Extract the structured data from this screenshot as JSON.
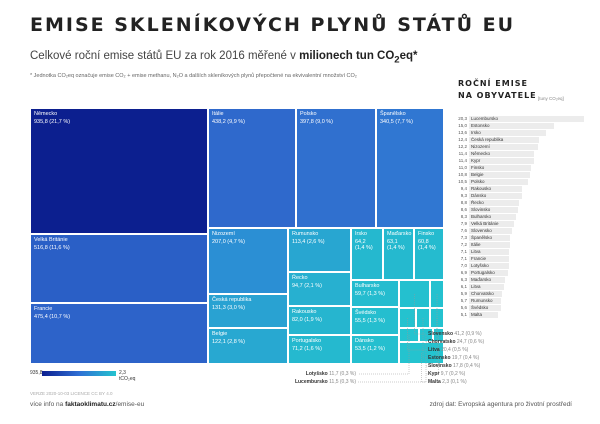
{
  "title": "EMISE SKLENÍKOVÝCH PLYNŮ STÁTŮ EU",
  "subtitle": {
    "prefix": "Celkové roční emise států EU za rok 2016 měřené v ",
    "bold": "milionech tun CO",
    "sub": "2",
    "bold_end": "eq*"
  },
  "footnote": "* Jednotka CO₂eq označuje emise CO₂ + emise methanu, N₂O a dalších skleníkových plynů přepočtené na ekvivalentní množství CO₂",
  "side_panel": {
    "title_line1": "ROČNÍ EMISE",
    "title_line2": "NA OBYVATELE",
    "unit": "[tuny CO₂eq]"
  },
  "legend": {
    "max": "935,8",
    "min": "2,3 tCO₂eq"
  },
  "footer": {
    "version": "VERZE 2020-10-03    LICENCE CC BY 4.0",
    "credit_prefix": "více info na ",
    "credit_bold": "faktaoklimatu.cz",
    "credit_suffix": "/emise-eu",
    "source": "zdroj dat: Evropská agentura pro životní prostředí"
  },
  "colors": {
    "darkest": "#0c1f8f",
    "mid": "#2f6fd4",
    "lightest": "#24c3cf",
    "percap_bar": "#ececec"
  },
  "chart_data": [
    {
      "type": "treemap",
      "title": "Celkové roční emise států EU za rok 2016 měřené v milionech tun CO2eq",
      "unit": "mil. t CO2eq",
      "items": [
        {
          "name": "Německo",
          "value": 935.8,
          "label": "935,8 (21,7 %)",
          "color": "#0c1f8f"
        },
        {
          "name": "Velká Británie",
          "value": 516.8,
          "label": "516,8 (11,6 %)",
          "color": "#2a5fc6"
        },
        {
          "name": "Francie",
          "value": 475.4,
          "label": "475,4 (10,7 %)",
          "color": "#2d63c9"
        },
        {
          "name": "Itálie",
          "value": 438.2,
          "label": "438,2 (9,9 %)",
          "color": "#2f69cc"
        },
        {
          "name": "Polsko",
          "value": 397.8,
          "label": "397,8 (9,0 %)",
          "color": "#3070cf"
        },
        {
          "name": "Španělsko",
          "value": 340.5,
          "label": "340,5 (7,7 %)",
          "color": "#3077d2"
        },
        {
          "name": "Nizozemí",
          "value": 207.0,
          "label": "207,0 (4,7 %)",
          "color": "#2b8fd4"
        },
        {
          "name": "Česká republika",
          "value": 131.3,
          "label": "131,3 (3,0 %)",
          "color": "#29a2d2"
        },
        {
          "name": "Belgie",
          "value": 122.1,
          "label": "122,1 (2,8 %)",
          "color": "#28a8d1"
        },
        {
          "name": "Rumunsko",
          "value": 113.4,
          "label": "113,4 (2,6 %)",
          "color": "#28a6d1"
        },
        {
          "name": "Řecko",
          "value": 94.7,
          "label": "94,7 (2,1 %)",
          "color": "#27b0d0"
        },
        {
          "name": "Rakousko",
          "value": 82.0,
          "label": "82,0 (1,9 %)",
          "color": "#26b5cf"
        },
        {
          "name": "Portugalsko",
          "value": 71.2,
          "label": "71,2 (1,6 %)",
          "color": "#25b9cf"
        },
        {
          "name": "Irsko",
          "value": 64.2,
          "label": "64,2 (1,4 %)",
          "color": "#25b8cf"
        },
        {
          "name": "Maďarsko",
          "value": 63.1,
          "label": "63,1 (1,4 %)",
          "color": "#25b9cf"
        },
        {
          "name": "Finsko",
          "value": 60.8,
          "label": "60,8 (1,4 %)",
          "color": "#25bbcf"
        },
        {
          "name": "Bulharsko",
          "value": 59.7,
          "label": "59,7 (1,3 %)",
          "color": "#25bccf"
        },
        {
          "name": "Švédsko",
          "value": 55.5,
          "label": "55,5 (1,3 %)",
          "color": "#25becf"
        },
        {
          "name": "Dánsko",
          "value": 53.5,
          "label": "53,5 (1,2 %)",
          "color": "#25bfcf"
        },
        {
          "name": "Slovensko",
          "value": 41.2,
          "label": "41,2 (0,9 %)",
          "color": "#24c0cf"
        },
        {
          "name": "Chorvatsko",
          "value": 24.7,
          "label": "24,7 (0,6 %)",
          "color": "#24c1cf"
        },
        {
          "name": "Litva",
          "value": 20.4,
          "label": "20,4 (0,5 %)",
          "color": "#24c2cf"
        },
        {
          "name": "Estonsko",
          "value": 19.7,
          "label": "19,7 (0,4 %)",
          "color": "#24c2cf"
        },
        {
          "name": "Slovinsko",
          "value": 17.8,
          "label": "17,8 (0,4 %)",
          "color": "#24c2cf"
        },
        {
          "name": "Lotyšsko",
          "value": 11.7,
          "label": "11,7 (0,3 %)",
          "color": "#24c3cf"
        },
        {
          "name": "Lucembursko",
          "value": 11.5,
          "label": "11,5 (0,3 %)",
          "color": "#24c3cf"
        },
        {
          "name": "Kypr",
          "value": 9.7,
          "label": "9,7 (0,2 %)",
          "color": "#24c3cf"
        },
        {
          "name": "Malta",
          "value": 2.3,
          "label": "2,3 (0,1 %)",
          "color": "#24c3cf"
        }
      ]
    },
    {
      "type": "bar",
      "title": "ROČNÍ EMISE NA OBYVATELE",
      "unit": "tuny CO2eq",
      "orientation": "horizontal",
      "categories": [
        "Lucembursko",
        "Estonsko",
        "Irsko",
        "Česká republika",
        "Nizozemí",
        "Německo",
        "Kypr",
        "Finsko",
        "Belgie",
        "Polsko",
        "Rakousko",
        "Dánsko",
        "Řecko",
        "Slovinsko",
        "Bulharsko",
        "Velká Británie",
        "Slovensko",
        "Španělsko",
        "Itálie",
        "Litva",
        "Francie",
        "Lotyšsko",
        "Portugalsko",
        "Maďarsko",
        "Litva",
        "Chorvatsko",
        "Rumunsko",
        "Švédsko",
        "Malta"
      ],
      "values": [
        20.3,
        15.0,
        13.6,
        12.4,
        12.2,
        11.4,
        11.4,
        11.0,
        10.8,
        10.5,
        9.4,
        9.3,
        8.8,
        8.6,
        8.3,
        7.9,
        7.6,
        7.3,
        7.2,
        7.1,
        7.1,
        7.0,
        6.9,
        6.3,
        6.1,
        5.9,
        5.7,
        5.6,
        5.1
      ],
      "value_labels": [
        "20,3",
        "15,0",
        "13,6",
        "12,4",
        "12,2",
        "11,4",
        "11,4",
        "11,0",
        "10,8",
        "10,5",
        "9,4",
        "9,3",
        "8,8",
        "8,6",
        "8,3",
        "7,9",
        "7,6",
        "7,3",
        "7,2",
        "7,1",
        "7,1",
        "7,0",
        "6,9",
        "6,3",
        "6,1",
        "5,9",
        "5,7",
        "5,6",
        "5,1"
      ]
    }
  ]
}
